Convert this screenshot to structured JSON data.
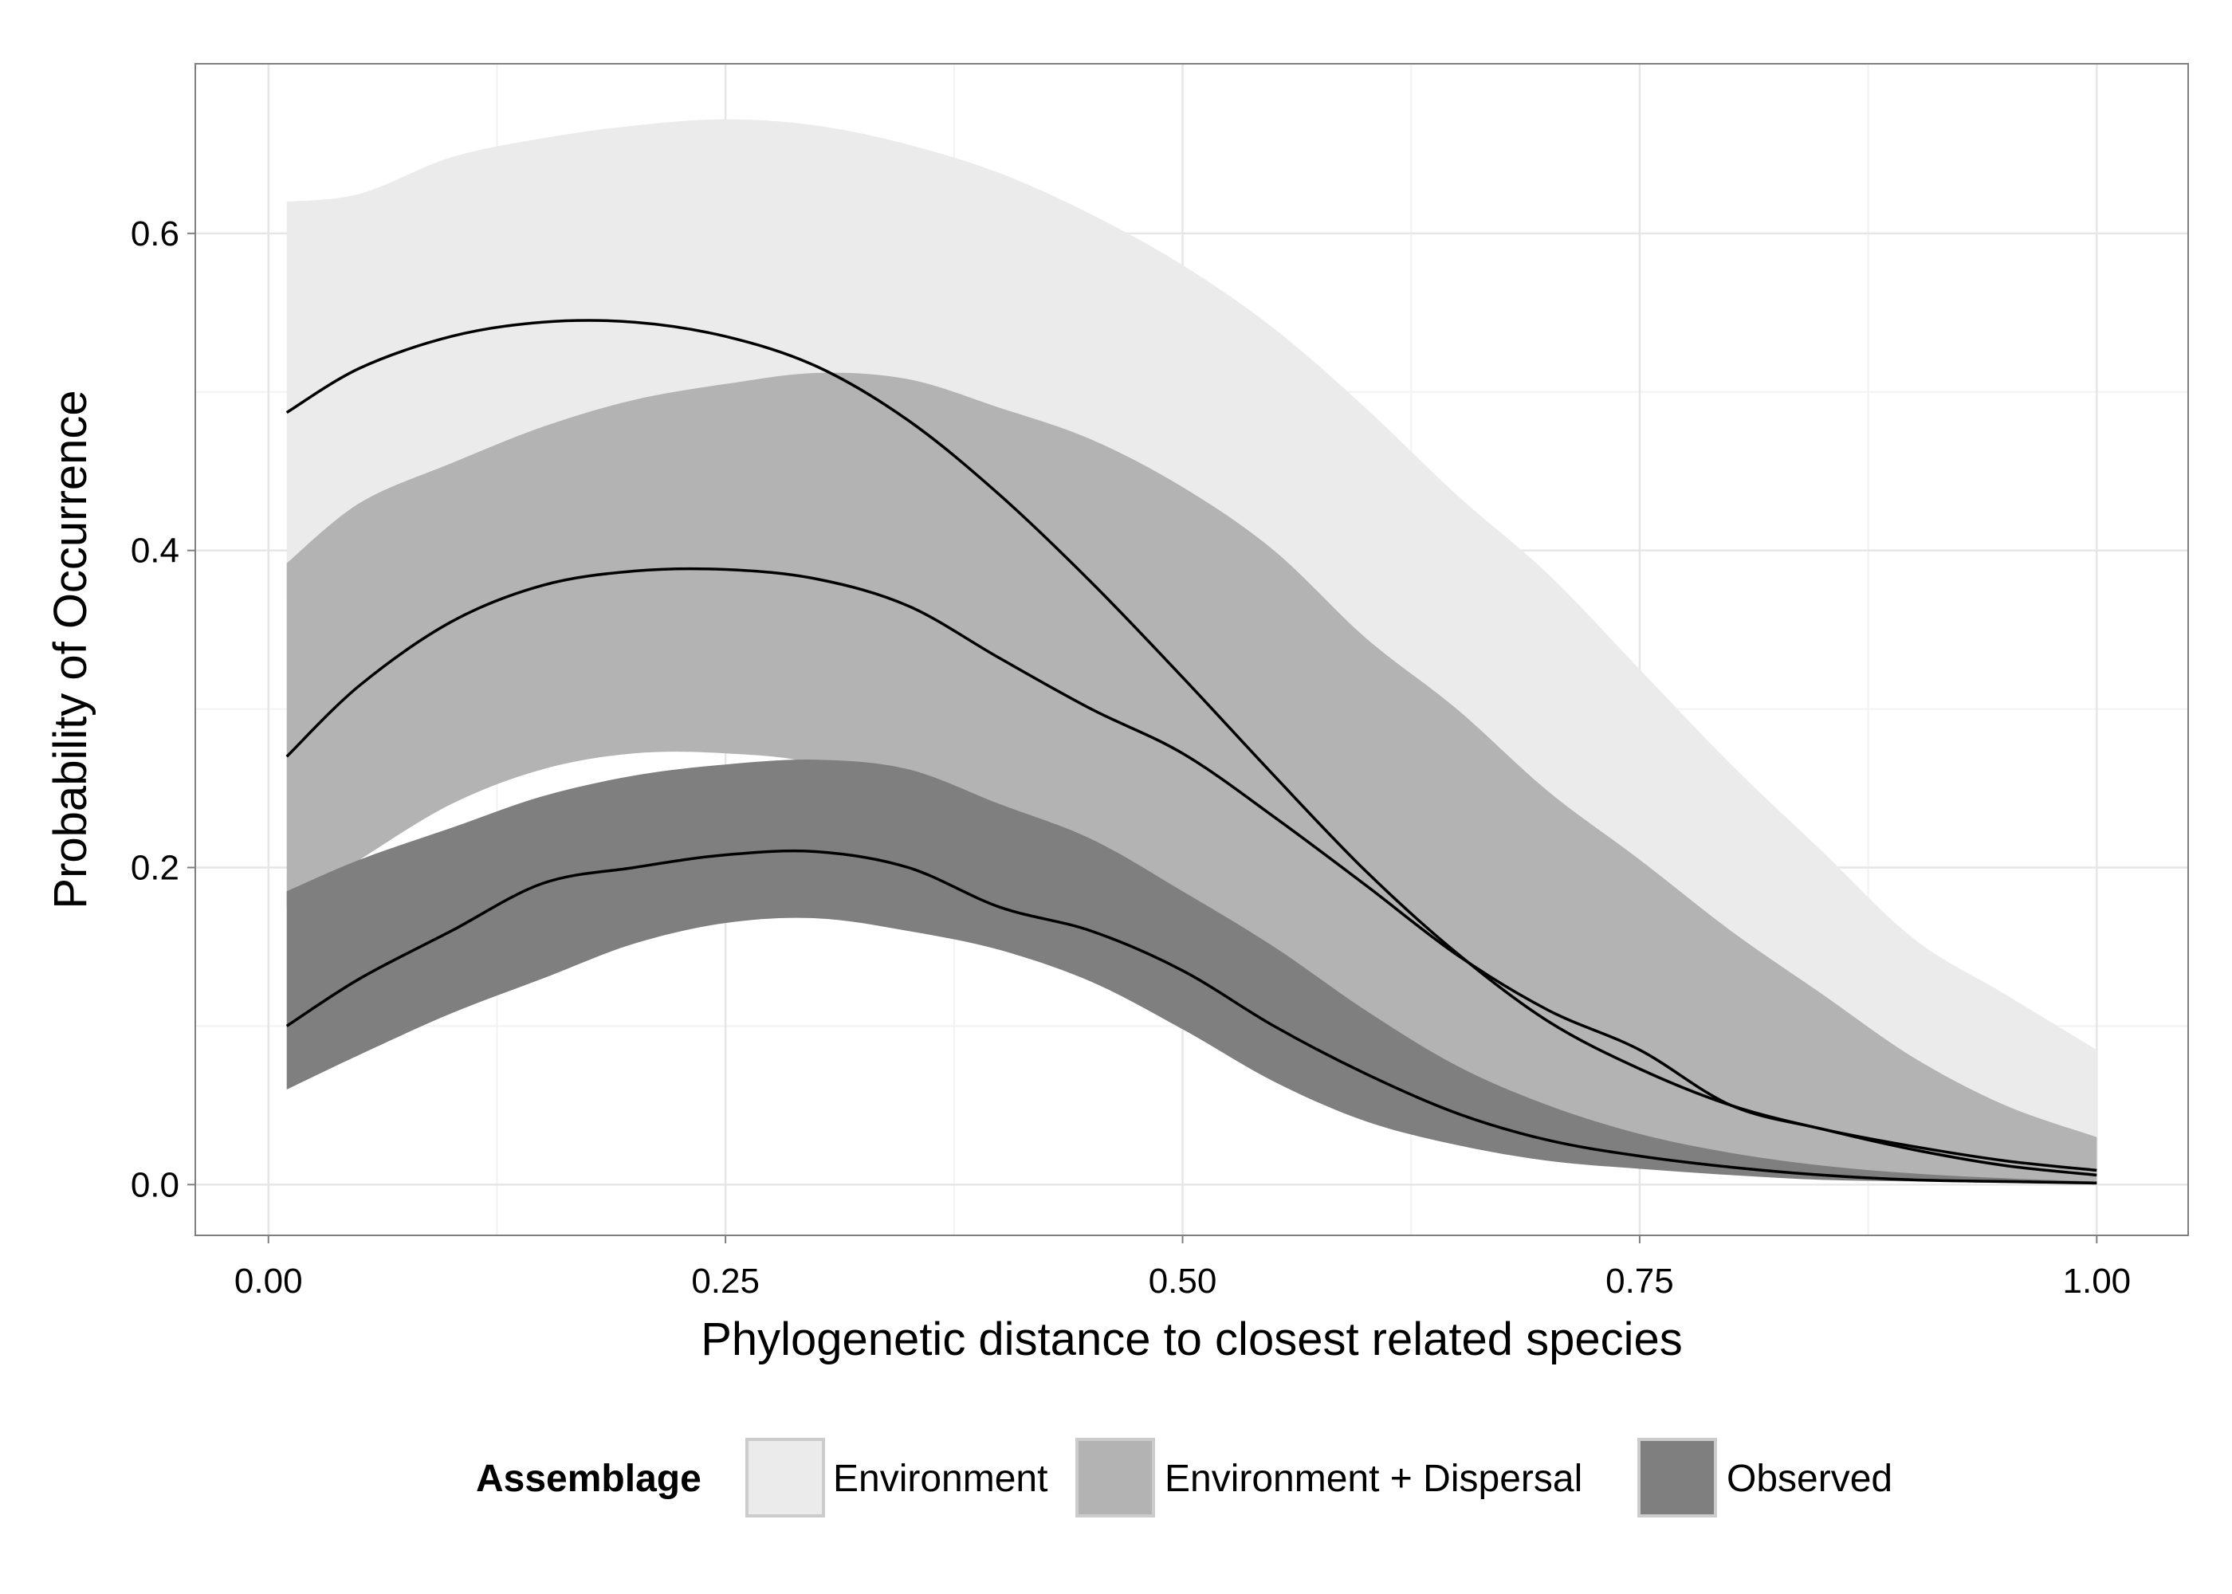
{
  "chart_data": {
    "type": "area",
    "title": "",
    "xlabel": "Phylogenetic distance to closest related species",
    "ylabel": "Probability of Occurrence",
    "xlim": [
      -0.04,
      1.05
    ],
    "ylim": [
      -0.032,
      0.707
    ],
    "x_ticks": [
      0.0,
      0.25,
      0.5,
      0.75,
      1.0
    ],
    "x_tick_labels": [
      "0.00",
      "0.25",
      "0.50",
      "0.75",
      "1.00"
    ],
    "y_ticks": [
      0.0,
      0.2,
      0.4,
      0.6
    ],
    "y_tick_labels": [
      "0.0",
      "0.2",
      "0.4",
      "0.6"
    ],
    "grid": true,
    "legend": {
      "title": "Assemblage",
      "position": "bottom",
      "entries": [
        "Environment",
        "Environment + Dispersal",
        "Observed"
      ]
    },
    "series": [
      {
        "name": "Environment",
        "fill": "#ebebeb",
        "x": [
          0.01,
          0.05,
          0.1,
          0.15,
          0.2,
          0.25,
          0.3,
          0.35,
          0.4,
          0.45,
          0.5,
          0.55,
          0.6,
          0.65,
          0.7,
          0.75,
          0.8,
          0.85,
          0.9,
          0.95,
          1.0
        ],
        "mean": [
          0.487,
          0.515,
          0.535,
          0.544,
          0.544,
          0.535,
          0.516,
          0.482,
          0.435,
          0.38,
          0.32,
          0.258,
          0.198,
          0.146,
          0.103,
          0.073,
          0.05,
          0.035,
          0.024,
          0.015,
          0.009
        ],
        "upper": [
          0.62,
          0.625,
          0.648,
          0.66,
          0.668,
          0.672,
          0.668,
          0.656,
          0.638,
          0.612,
          0.58,
          0.54,
          0.49,
          0.435,
          0.385,
          0.325,
          0.265,
          0.21,
          0.155,
          0.12,
          0.085
        ],
        "lower": [
          0.37,
          0.39,
          0.41,
          0.42,
          0.41,
          0.39,
          0.365,
          0.32,
          0.27,
          0.22,
          0.175,
          0.132,
          0.095,
          0.065,
          0.045,
          0.03,
          0.02,
          0.012,
          0.008,
          0.005,
          0.002
        ]
      },
      {
        "name": "Environment + Dispersal",
        "fill": "#b3b3b3",
        "x": [
          0.01,
          0.05,
          0.1,
          0.15,
          0.2,
          0.25,
          0.3,
          0.35,
          0.4,
          0.45,
          0.5,
          0.55,
          0.6,
          0.65,
          0.7,
          0.75,
          0.8,
          0.85,
          0.9,
          0.95,
          1.0
        ],
        "mean": [
          0.27,
          0.315,
          0.355,
          0.378,
          0.387,
          0.388,
          0.382,
          0.365,
          0.332,
          0.3,
          0.272,
          0.232,
          0.189,
          0.145,
          0.11,
          0.085,
          0.05,
          0.035,
          0.022,
          0.012,
          0.006
        ],
        "upper": [
          0.392,
          0.43,
          0.455,
          0.478,
          0.495,
          0.505,
          0.512,
          0.508,
          0.49,
          0.47,
          0.44,
          0.4,
          0.345,
          0.3,
          0.248,
          0.205,
          0.16,
          0.12,
          0.08,
          0.05,
          0.03
        ],
        "lower": [
          0.175,
          0.205,
          0.24,
          0.262,
          0.272,
          0.272,
          0.265,
          0.24,
          0.208,
          0.172,
          0.14,
          0.108,
          0.078,
          0.055,
          0.038,
          0.025,
          0.015,
          0.01,
          0.005,
          0.003,
          0.001
        ]
      },
      {
        "name": "Observed",
        "fill": "#7f7f7f",
        "x": [
          0.01,
          0.05,
          0.1,
          0.15,
          0.2,
          0.25,
          0.3,
          0.35,
          0.4,
          0.45,
          0.5,
          0.55,
          0.6,
          0.65,
          0.7,
          0.75,
          0.8,
          0.85,
          0.9,
          0.95,
          1.0
        ],
        "mean": [
          0.1,
          0.13,
          0.16,
          0.19,
          0.2,
          0.208,
          0.21,
          0.2,
          0.175,
          0.16,
          0.135,
          0.1,
          0.07,
          0.045,
          0.028,
          0.018,
          0.011,
          0.006,
          0.003,
          0.002,
          0.001
        ],
        "upper": [
          0.185,
          0.205,
          0.225,
          0.245,
          0.258,
          0.265,
          0.268,
          0.262,
          0.24,
          0.218,
          0.185,
          0.15,
          0.11,
          0.075,
          0.05,
          0.032,
          0.02,
          0.012,
          0.007,
          0.004,
          0.002
        ],
        "lower": [
          0.06,
          0.082,
          0.108,
          0.13,
          0.152,
          0.165,
          0.168,
          0.16,
          0.148,
          0.128,
          0.098,
          0.065,
          0.04,
          0.025,
          0.015,
          0.01,
          0.006,
          0.003,
          0.002,
          0.001,
          0.0
        ]
      }
    ]
  }
}
